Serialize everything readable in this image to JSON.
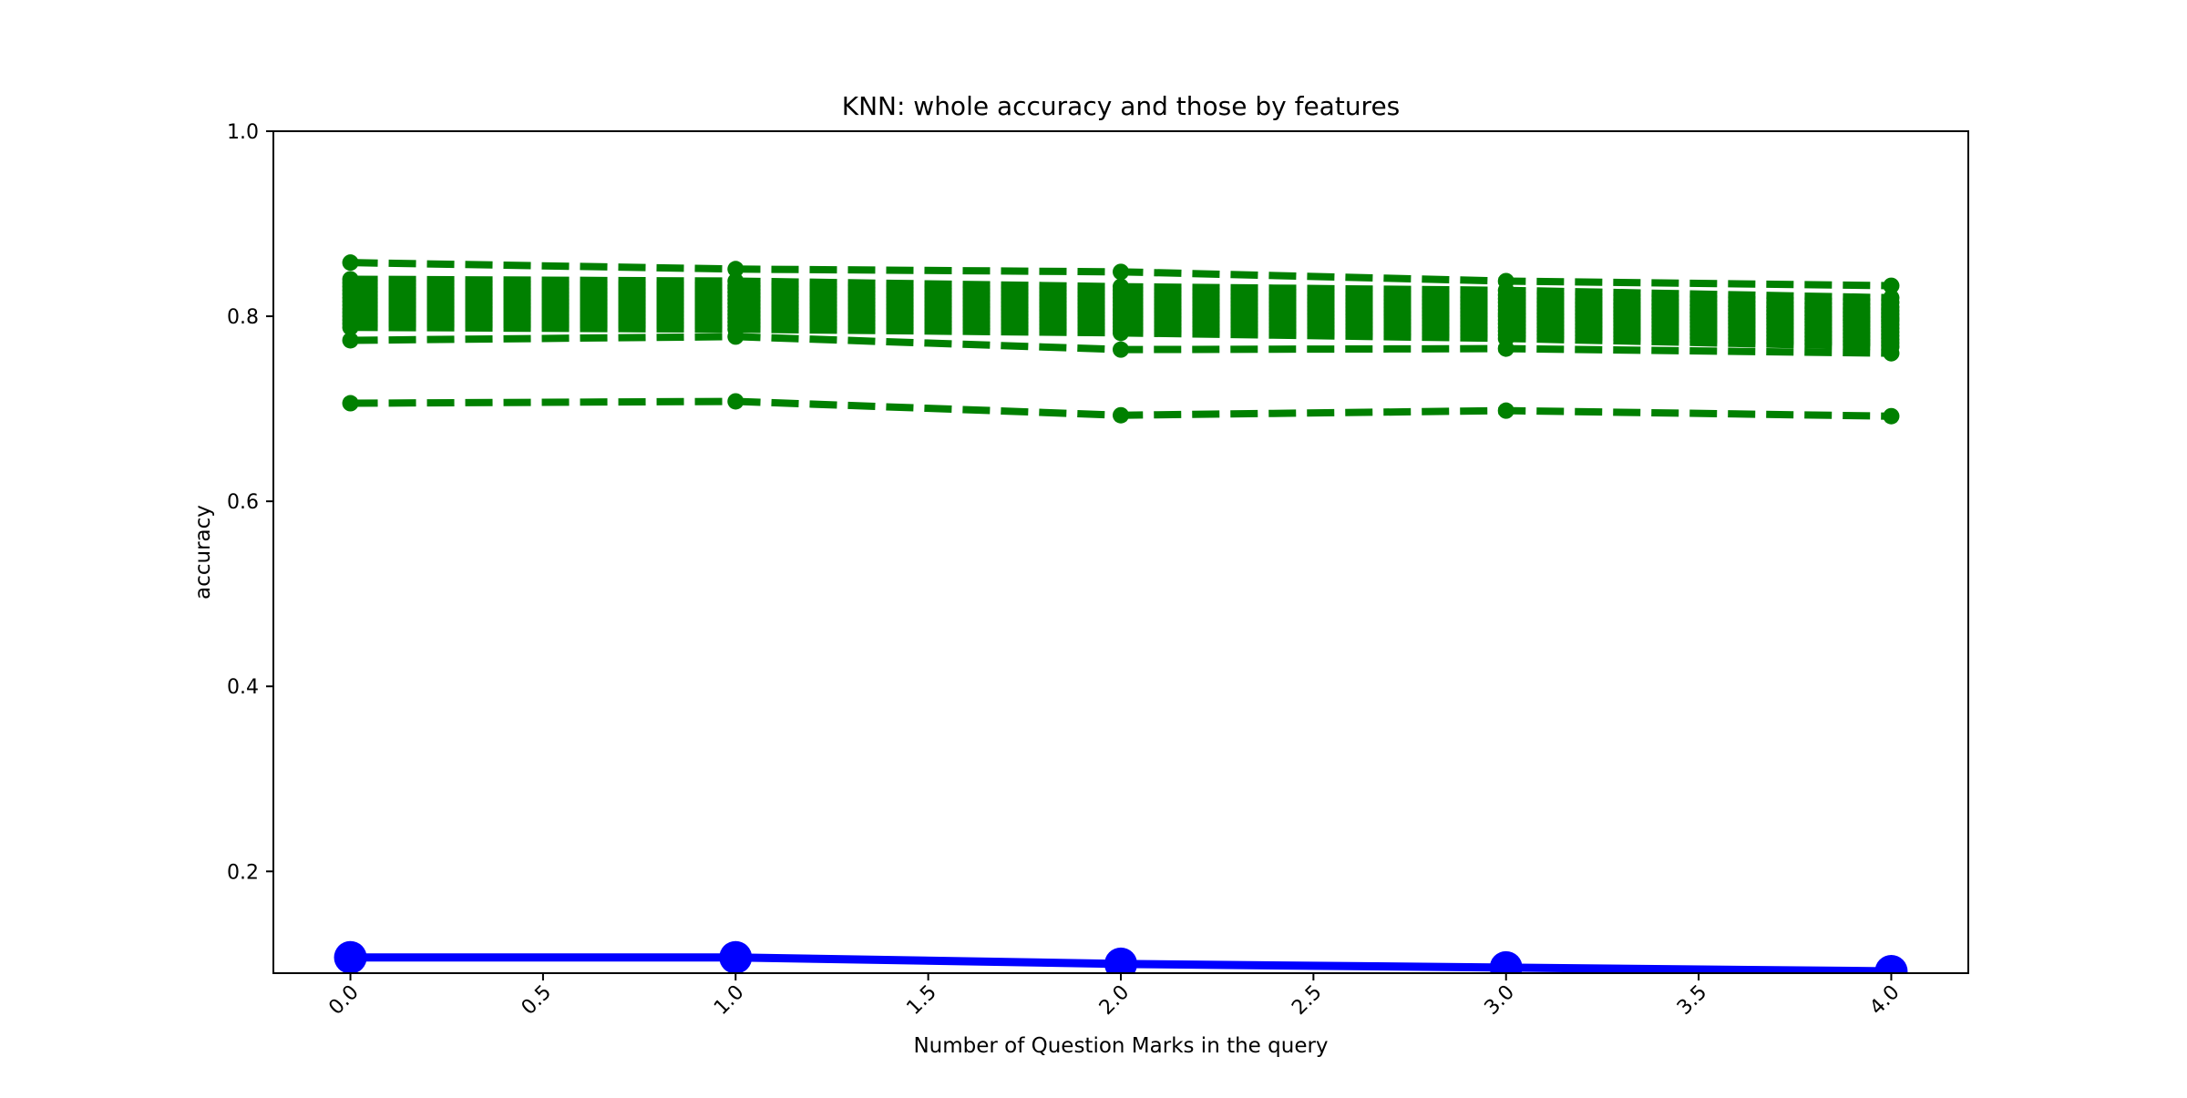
{
  "chart_data": {
    "type": "line",
    "title": "KNN: whole accuracy and those by features",
    "xlabel": "Number of Question Marks in the query",
    "ylabel": "accuracy",
    "xlim": [
      -0.2,
      4.2
    ],
    "ylim": [
      0.09,
      1.0
    ],
    "x_ticks": [
      "0.0",
      "0.5",
      "1.0",
      "1.5",
      "2.0",
      "2.5",
      "3.0",
      "3.5",
      "4.0"
    ],
    "y_ticks": [
      "0.2",
      "0.4",
      "0.6",
      "0.8",
      "1.0"
    ],
    "grid": false,
    "legend": "none",
    "x": [
      0,
      1,
      2,
      3,
      4
    ],
    "colors": {
      "whole": "#0000ff",
      "features": "#008000"
    },
    "whole_series": {
      "values": [
        0.107,
        0.107,
        0.1,
        0.096,
        0.092
      ]
    },
    "feature_series": [
      {
        "values": [
          0.858,
          0.851,
          0.848,
          0.838,
          0.833
        ]
      },
      {
        "values": [
          0.84,
          0.838,
          0.832,
          0.828,
          0.82
        ]
      },
      {
        "values": [
          0.836,
          0.833,
          0.828,
          0.823,
          0.815
        ]
      },
      {
        "values": [
          0.832,
          0.83,
          0.824,
          0.819,
          0.81
        ]
      },
      {
        "values": [
          0.828,
          0.826,
          0.82,
          0.815,
          0.806
        ]
      },
      {
        "values": [
          0.824,
          0.822,
          0.816,
          0.811,
          0.802
        ]
      },
      {
        "values": [
          0.82,
          0.818,
          0.812,
          0.807,
          0.798
        ]
      },
      {
        "values": [
          0.816,
          0.814,
          0.808,
          0.803,
          0.795
        ]
      },
      {
        "values": [
          0.812,
          0.81,
          0.805,
          0.8,
          0.791
        ]
      },
      {
        "values": [
          0.808,
          0.806,
          0.801,
          0.796,
          0.787
        ]
      },
      {
        "values": [
          0.804,
          0.802,
          0.797,
          0.792,
          0.783
        ]
      },
      {
        "values": [
          0.8,
          0.798,
          0.793,
          0.788,
          0.779
        ]
      },
      {
        "values": [
          0.796,
          0.794,
          0.789,
          0.784,
          0.775
        ]
      },
      {
        "values": [
          0.792,
          0.79,
          0.785,
          0.78,
          0.771
        ]
      },
      {
        "values": [
          0.788,
          0.786,
          0.782,
          0.776,
          0.767
        ]
      },
      {
        "values": [
          0.774,
          0.778,
          0.764,
          0.765,
          0.76
        ]
      },
      {
        "values": [
          0.706,
          0.708,
          0.693,
          0.698,
          0.692
        ]
      }
    ]
  }
}
